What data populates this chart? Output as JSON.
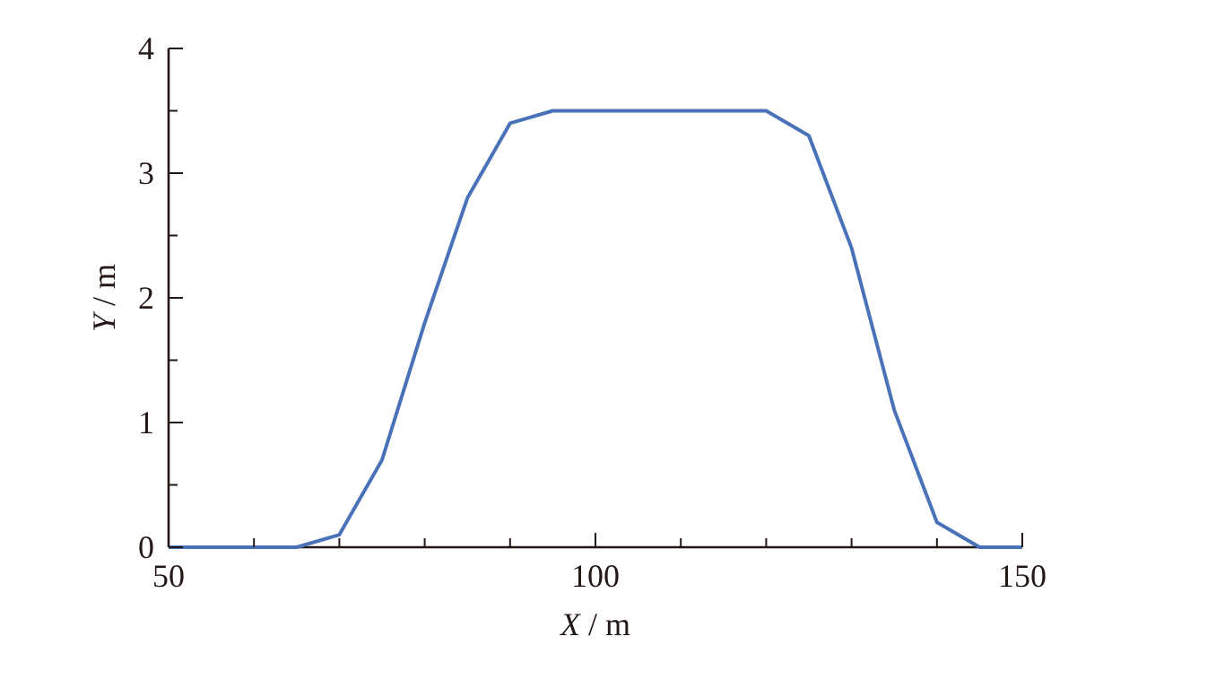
{
  "chart_data": {
    "type": "line",
    "xlabel": "X / m",
    "ylabel": "Y / m",
    "x": [
      50,
      55,
      60,
      65,
      70,
      75,
      80,
      85,
      90,
      95,
      100,
      105,
      110,
      115,
      120,
      125,
      130,
      135,
      140,
      145,
      150
    ],
    "series": [
      {
        "color": "#4a72b8",
        "values": [
          0,
          0,
          0,
          0,
          0.1,
          0.7,
          1.8,
          2.8,
          3.4,
          3.5,
          3.5,
          3.5,
          3.5,
          3.5,
          3.5,
          3.3,
          2.4,
          1.1,
          0.2,
          0,
          0
        ]
      }
    ],
    "xlim": [
      50,
      150
    ],
    "ylim": [
      0,
      4
    ],
    "xticks": [
      50,
      {
        "value": 60,
        "label": null
      },
      {
        "value": 70,
        "label": null
      },
      {
        "value": 80,
        "label": null
      },
      {
        "value": 90,
        "label": null
      },
      100,
      {
        "value": 110,
        "label": null
      },
      {
        "value": 120,
        "label": null
      },
      {
        "value": 130,
        "label": null
      },
      {
        "value": 140,
        "label": null
      },
      150
    ],
    "yticks": [
      0,
      {
        "value": 0.5,
        "label": null
      },
      1,
      {
        "value": 1.5,
        "label": null
      },
      2,
      {
        "value": 2.5,
        "label": null
      },
      3,
      {
        "value": 3.5,
        "label": null
      },
      4
    ],
    "grid": false,
    "marker": "none",
    "line_style": "solid"
  }
}
